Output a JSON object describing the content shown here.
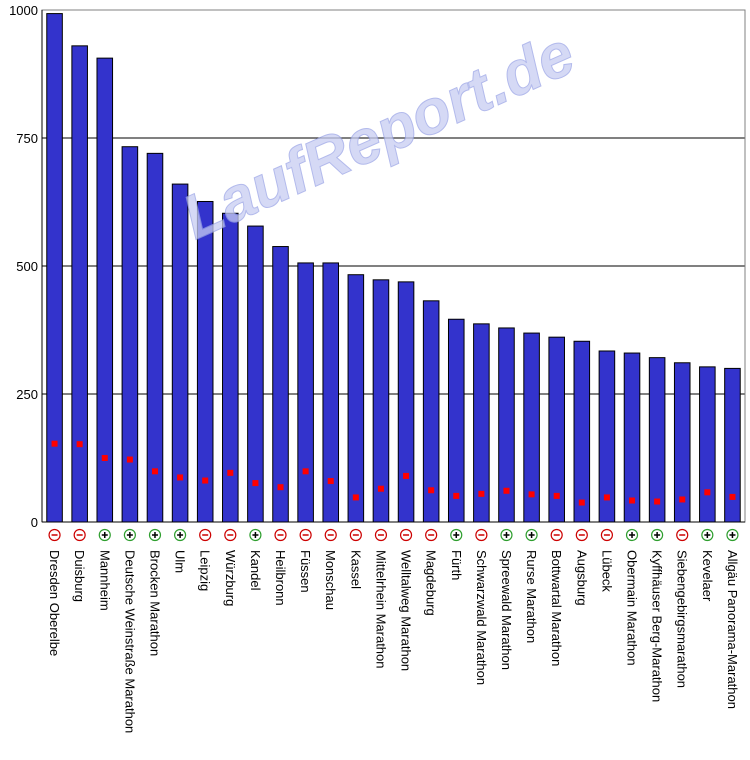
{
  "watermark": "LaufReport.de",
  "chart_data": {
    "type": "bar",
    "ylim": [
      0,
      1000
    ],
    "yticks": [
      0,
      250,
      500,
      750,
      1000
    ],
    "grid": true,
    "bar_color": "#3333cc",
    "marker_color": "#ff0000",
    "plus_color": "#2e9e2e",
    "minus_color": "#cc0000",
    "categories": [
      "Dresden Oberelbe",
      "Duisburg",
      "Mannheim",
      "Deutsche Weinstraße Marathon",
      "Brocken Marathon",
      "Ulm",
      "Leipzig",
      "Würzburg",
      "Kandel",
      "Heilbronn",
      "Füssen",
      "Monschau",
      "Kassel",
      "Mittelrhein Marathon",
      "Welltalweg Marathon",
      "Magdeburg",
      "Fürth",
      "Schwarzwald Marathon",
      "Spreewald Marathon",
      "Rurse Marathon",
      "Bottwartal Marathon",
      "Augsburg",
      "Lübeck",
      "Obermain Marathon",
      "Kyffhäuser Berg-Marathon",
      "Siebengebirgsmarathon",
      "Kevelaer",
      "Allgäu Panorama-Marathon"
    ],
    "series": [
      {
        "values": [
          993,
          930,
          906,
          733,
          720,
          660,
          626,
          603,
          578,
          538,
          506,
          506,
          483,
          473,
          469,
          432,
          396,
          387,
          379,
          369,
          361,
          353,
          334,
          330,
          321,
          311,
          303,
          300
        ]
      },
      {
        "values": [
          153,
          152,
          125,
          122,
          99,
          87,
          81,
          96,
          76,
          68,
          99,
          80,
          48,
          65,
          90,
          62,
          51,
          55,
          61,
          54,
          51,
          38,
          48,
          42,
          40,
          44,
          58,
          49
        ]
      }
    ],
    "trend": [
      "-",
      "-",
      "+",
      "+",
      "+",
      "+",
      "-",
      "-",
      "+",
      "-",
      "-",
      "-",
      "-",
      "-",
      "-",
      "-",
      "+",
      "-",
      "+",
      "+",
      "-",
      "-",
      "-",
      "+",
      "+",
      "-",
      "+",
      "+"
    ]
  }
}
